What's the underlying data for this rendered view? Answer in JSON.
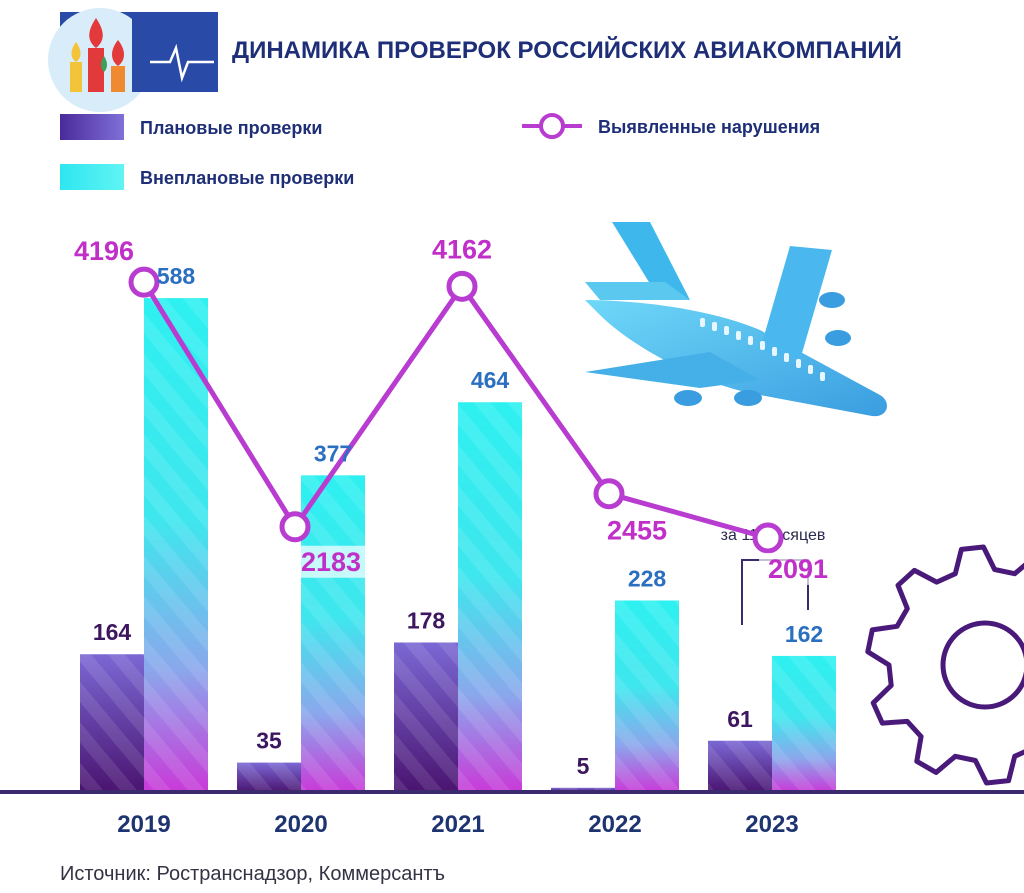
{
  "header": {
    "title": "ДИНАМИКА ПРОВЕРОК РОССИЙСКИХ АВИАКОМПАНИЙ"
  },
  "legend": {
    "planned": "Плановые проверки",
    "unplanned": "Внеплановые проверки",
    "violations": "Выявленные нарушения"
  },
  "note": "за 11 месяцев",
  "source": "Источник: Ространснадзор, Коммерсантъ",
  "colors": {
    "title": "#1e2f78",
    "planned_top": "#7b68d4",
    "planned_bottom": "#4a1470",
    "unplanned_top": "#2ef0f0",
    "unplanned_bottom": "#c93ad8",
    "violations_line": "#b93cd0",
    "planned_label": "#3d1660",
    "unplanned_label": "#2b6fc0",
    "violations_label": "#c02fc8",
    "axis": "#3c2a6e"
  },
  "chart_data": {
    "type": "bar",
    "categories": [
      "2019",
      "2020",
      "2021",
      "2022",
      "2023"
    ],
    "series": [
      {
        "name": "Плановые проверки",
        "type": "bar",
        "values": [
          164,
          35,
          178,
          5,
          61
        ]
      },
      {
        "name": "Внеплановые проверки",
        "type": "bar",
        "values": [
          588,
          377,
          464,
          228,
          162
        ]
      },
      {
        "name": "Выявленные нарушения",
        "type": "line",
        "values": [
          4196,
          2183,
          4162,
          2455,
          2091
        ]
      }
    ],
    "bar_ylim": [
      0,
      650
    ],
    "line_ylim": [
      0,
      6600
    ],
    "legend_position": "top",
    "grid": false
  }
}
